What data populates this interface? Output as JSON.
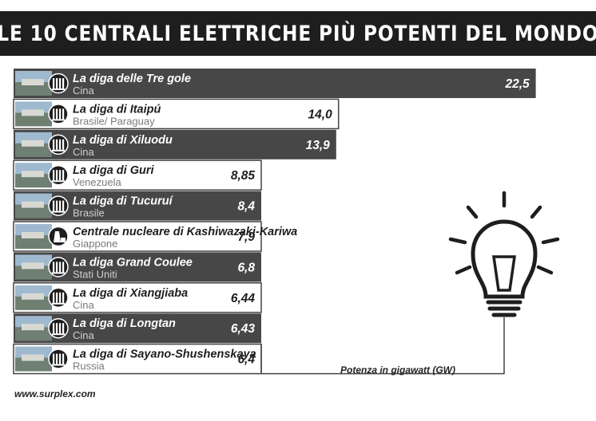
{
  "title": "LE 10 CENTRALI ELETTRICHE PIÙ POTENTI DEL MONDO",
  "footer": "www.surplex.com",
  "colors": {
    "dark_bar": "#474747",
    "light_bar": "#ffffff",
    "header_bg": "#1e1e1e"
  },
  "chart_data": {
    "type": "bar",
    "orientation": "horizontal",
    "unit_label": "Potenza in gigawatt (GW)",
    "categories": [
      "La diga delle Tre gole",
      "La diga di Itaipú",
      "La diga di Xiluodu",
      "La diga di Guri",
      "La diga di Tucuruí",
      "Centrale nucleare di Kashiwazaki-Kariwa",
      "La diga Grand Coulee",
      "La diga di Xiangjiaba",
      "La diga di Longtan",
      "La diga di Sayano-Shushenskaya"
    ],
    "countries": [
      "Cina",
      "Brasile/ Paraguay",
      "Cina",
      "Venezuela",
      "Brasile",
      "Giappone",
      "Stati Uniti",
      "Cina",
      "Cina",
      "Russia"
    ],
    "values": [
      22.5,
      14.0,
      13.9,
      8.85,
      8.4,
      7.9,
      6.8,
      6.44,
      6.43,
      6.4
    ],
    "value_labels": [
      "22,5",
      "14,0",
      "13,9",
      "8,85",
      "8,4",
      "7,9",
      "6,8",
      "6,44",
      "6,43",
      "6,4"
    ],
    "icons": [
      "dam-icon",
      "dam-icon",
      "dam-icon",
      "dam-icon",
      "dam-icon",
      "nuclear-plant-icon",
      "dam-icon",
      "dam-icon",
      "dam-icon",
      "dam-icon"
    ]
  }
}
